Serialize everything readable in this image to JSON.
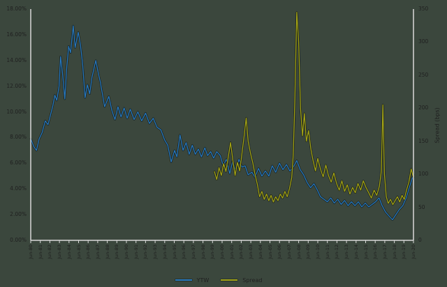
{
  "chart_data": {
    "type": "line",
    "title": "",
    "grid": false,
    "legend_position": "bottom-center",
    "left_axis": {
      "min": 0,
      "max": 18,
      "step": 2,
      "format": "percent",
      "labels": [
        "0.00%",
        "2.00%",
        "4.00%",
        "6.00%",
        "8.00%",
        "10.00%",
        "12.00%",
        "14.00%",
        "16.00%",
        "18.00%"
      ]
    },
    "right_axis": {
      "title": "Spread (bps)",
      "min": 0,
      "max": 350,
      "step": 50,
      "labels": [
        "0",
        "50",
        "100",
        "150",
        "200",
        "250",
        "300",
        "350"
      ]
    },
    "x_axis": {
      "labels": [
        "Jun-80",
        "Jun-81",
        "Jun-82",
        "Jun-83",
        "Jun-84",
        "Jun-85",
        "Jun-86",
        "Jun-87",
        "Jun-88",
        "Jun-89",
        "Jun-90",
        "Jun-91",
        "Jun-92",
        "Jun-93",
        "Jun-94",
        "Jun-95",
        "Jun-96",
        "Jun-97",
        "Jun-98",
        "Jun-99",
        "Jun-00",
        "Jun-01",
        "Jun-02",
        "Jun-03",
        "Jun-04",
        "Jun-05",
        "Jun-06",
        "Jun-07",
        "Jun-08",
        "Jun-09",
        "Jun-10",
        "Jun-11",
        "Jun-12",
        "Jun-13",
        "Jun-14",
        "Jun-15",
        "Jun-16",
        "Jun-17",
        "Jun-18",
        "Jun-19",
        "Jun-20"
      ]
    },
    "legend": [
      {
        "label": "YTW",
        "color": "#2878be"
      },
      {
        "label": "Spread",
        "color": "#a3a316"
      }
    ],
    "series": [
      {
        "name": "YTW",
        "axis": "left",
        "color": "#2878be",
        "points": [
          [
            0.0,
            7.9
          ],
          [
            0.008,
            7.3
          ],
          [
            0.015,
            7.0
          ],
          [
            0.022,
            7.9
          ],
          [
            0.03,
            8.4
          ],
          [
            0.038,
            9.3
          ],
          [
            0.045,
            9.0
          ],
          [
            0.052,
            9.8
          ],
          [
            0.058,
            10.5
          ],
          [
            0.063,
            11.3
          ],
          [
            0.068,
            10.9
          ],
          [
            0.074,
            12.0
          ],
          [
            0.078,
            14.3
          ],
          [
            0.083,
            13.0
          ],
          [
            0.089,
            11.0
          ],
          [
            0.094,
            13.4
          ],
          [
            0.099,
            15.1
          ],
          [
            0.104,
            14.6
          ],
          [
            0.111,
            16.7
          ],
          [
            0.116,
            15.0
          ],
          [
            0.124,
            16.2
          ],
          [
            0.13,
            15.2
          ],
          [
            0.136,
            13.6
          ],
          [
            0.142,
            11.1
          ],
          [
            0.148,
            12.1
          ],
          [
            0.154,
            11.4
          ],
          [
            0.16,
            12.7
          ],
          [
            0.17,
            14.0
          ],
          [
            0.176,
            13.1
          ],
          [
            0.182,
            12.3
          ],
          [
            0.193,
            10.4
          ],
          [
            0.204,
            11.2
          ],
          [
            0.212,
            10.1
          ],
          [
            0.22,
            9.4
          ],
          [
            0.228,
            10.4
          ],
          [
            0.236,
            9.6
          ],
          [
            0.244,
            10.3
          ],
          [
            0.252,
            9.5
          ],
          [
            0.26,
            10.2
          ],
          [
            0.27,
            9.4
          ],
          [
            0.28,
            10.0
          ],
          [
            0.29,
            9.3
          ],
          [
            0.3,
            9.9
          ],
          [
            0.31,
            9.1
          ],
          [
            0.32,
            9.5
          ],
          [
            0.33,
            8.8
          ],
          [
            0.34,
            8.6
          ],
          [
            0.35,
            7.8
          ],
          [
            0.358,
            7.4
          ],
          [
            0.367,
            6.1
          ],
          [
            0.376,
            7.0
          ],
          [
            0.382,
            6.5
          ],
          [
            0.39,
            8.2
          ],
          [
            0.398,
            7.0
          ],
          [
            0.406,
            7.6
          ],
          [
            0.414,
            6.7
          ],
          [
            0.422,
            7.4
          ],
          [
            0.43,
            6.7
          ],
          [
            0.438,
            7.1
          ],
          [
            0.446,
            6.5
          ],
          [
            0.455,
            7.2
          ],
          [
            0.462,
            6.6
          ],
          [
            0.47,
            6.9
          ],
          [
            0.478,
            6.4
          ],
          [
            0.486,
            6.9
          ],
          [
            0.495,
            6.6
          ],
          [
            0.503,
            5.8
          ],
          [
            0.511,
            6.3
          ],
          [
            0.52,
            5.2
          ],
          [
            0.528,
            6.2
          ],
          [
            0.536,
            5.4
          ],
          [
            0.544,
            6.3
          ],
          [
            0.552,
            5.7
          ],
          [
            0.56,
            5.8
          ],
          [
            0.568,
            5.1
          ],
          [
            0.578,
            5.3
          ],
          [
            0.586,
            4.9
          ],
          [
            0.595,
            5.6
          ],
          [
            0.604,
            5.0
          ],
          [
            0.613,
            5.4
          ],
          [
            0.622,
            5.0
          ],
          [
            0.631,
            5.8
          ],
          [
            0.64,
            5.3
          ],
          [
            0.65,
            6.0
          ],
          [
            0.659,
            5.5
          ],
          [
            0.668,
            5.9
          ],
          [
            0.677,
            5.4
          ],
          [
            0.686,
            5.7
          ],
          [
            0.695,
            6.2
          ],
          [
            0.704,
            5.5
          ],
          [
            0.713,
            5.1
          ],
          [
            0.722,
            4.5
          ],
          [
            0.731,
            4.1
          ],
          [
            0.74,
            4.4
          ],
          [
            0.749,
            3.9
          ],
          [
            0.757,
            3.4
          ],
          [
            0.766,
            3.2
          ],
          [
            0.775,
            3.0
          ],
          [
            0.784,
            3.3
          ],
          [
            0.793,
            2.9
          ],
          [
            0.802,
            3.2
          ],
          [
            0.811,
            2.8
          ],
          [
            0.82,
            3.1
          ],
          [
            0.829,
            2.7
          ],
          [
            0.838,
            3.0
          ],
          [
            0.847,
            2.7
          ],
          [
            0.856,
            3.0
          ],
          [
            0.865,
            2.6
          ],
          [
            0.874,
            2.9
          ],
          [
            0.883,
            2.6
          ],
          [
            0.892,
            2.8
          ],
          [
            0.901,
            3.0
          ],
          [
            0.91,
            3.3
          ],
          [
            0.918,
            2.7
          ],
          [
            0.927,
            2.2
          ],
          [
            0.936,
            1.9
          ],
          [
            0.945,
            1.6
          ],
          [
            0.954,
            2.0
          ],
          [
            0.963,
            2.4
          ],
          [
            0.972,
            2.7
          ],
          [
            0.981,
            3.3
          ],
          [
            0.99,
            4.2
          ],
          [
            1.0,
            5.1
          ]
        ]
      },
      {
        "name": "Spread",
        "axis": "right",
        "color": "#a3a316",
        "points": [
          [
            0.48,
            104
          ],
          [
            0.486,
            92
          ],
          [
            0.492,
            110
          ],
          [
            0.498,
            98
          ],
          [
            0.504,
            116
          ],
          [
            0.51,
            104
          ],
          [
            0.516,
            126
          ],
          [
            0.522,
            148
          ],
          [
            0.528,
            122
          ],
          [
            0.534,
            98
          ],
          [
            0.54,
            118
          ],
          [
            0.546,
            105
          ],
          [
            0.552,
            132
          ],
          [
            0.558,
            160
          ],
          [
            0.563,
            185
          ],
          [
            0.568,
            150
          ],
          [
            0.574,
            132
          ],
          [
            0.58,
            118
          ],
          [
            0.586,
            100
          ],
          [
            0.592,
            85
          ],
          [
            0.598,
            66
          ],
          [
            0.604,
            74
          ],
          [
            0.61,
            62
          ],
          [
            0.616,
            70
          ],
          [
            0.622,
            60
          ],
          [
            0.628,
            68
          ],
          [
            0.634,
            58
          ],
          [
            0.64,
            66
          ],
          [
            0.646,
            60
          ],
          [
            0.652,
            70
          ],
          [
            0.658,
            64
          ],
          [
            0.664,
            74
          ],
          [
            0.67,
            66
          ],
          [
            0.676,
            78
          ],
          [
            0.682,
            95
          ],
          [
            0.686,
            130
          ],
          [
            0.69,
            210
          ],
          [
            0.695,
            345
          ],
          [
            0.7,
            300
          ],
          [
            0.705,
            200
          ],
          [
            0.71,
            158
          ],
          [
            0.715,
            192
          ],
          [
            0.72,
            150
          ],
          [
            0.726,
            166
          ],
          [
            0.732,
            138
          ],
          [
            0.738,
            120
          ],
          [
            0.744,
            105
          ],
          [
            0.75,
            124
          ],
          [
            0.757,
            108
          ],
          [
            0.764,
            96
          ],
          [
            0.771,
            114
          ],
          [
            0.778,
            98
          ],
          [
            0.785,
            88
          ],
          [
            0.792,
            102
          ],
          [
            0.799,
            86
          ],
          [
            0.806,
            76
          ],
          [
            0.813,
            90
          ],
          [
            0.82,
            74
          ],
          [
            0.827,
            84
          ],
          [
            0.834,
            70
          ],
          [
            0.841,
            80
          ],
          [
            0.848,
            72
          ],
          [
            0.855,
            86
          ],
          [
            0.862,
            76
          ],
          [
            0.869,
            90
          ],
          [
            0.876,
            80
          ],
          [
            0.883,
            72
          ],
          [
            0.89,
            64
          ],
          [
            0.897,
            76
          ],
          [
            0.904,
            68
          ],
          [
            0.911,
            82
          ],
          [
            0.916,
            105
          ],
          [
            0.92,
            205
          ],
          [
            0.924,
            100
          ],
          [
            0.929,
            66
          ],
          [
            0.934,
            56
          ],
          [
            0.94,
            62
          ],
          [
            0.946,
            54
          ],
          [
            0.952,
            60
          ],
          [
            0.958,
            66
          ],
          [
            0.964,
            58
          ],
          [
            0.97,
            68
          ],
          [
            0.976,
            62
          ],
          [
            0.982,
            76
          ],
          [
            0.988,
            88
          ],
          [
            0.994,
            108
          ],
          [
            1.0,
            95
          ]
        ]
      }
    ],
    "colors": {
      "background": "#3b473d",
      "axis_line": "#d9d9d9",
      "text": "#1f1f1f",
      "line_outline": "#141b16"
    }
  }
}
